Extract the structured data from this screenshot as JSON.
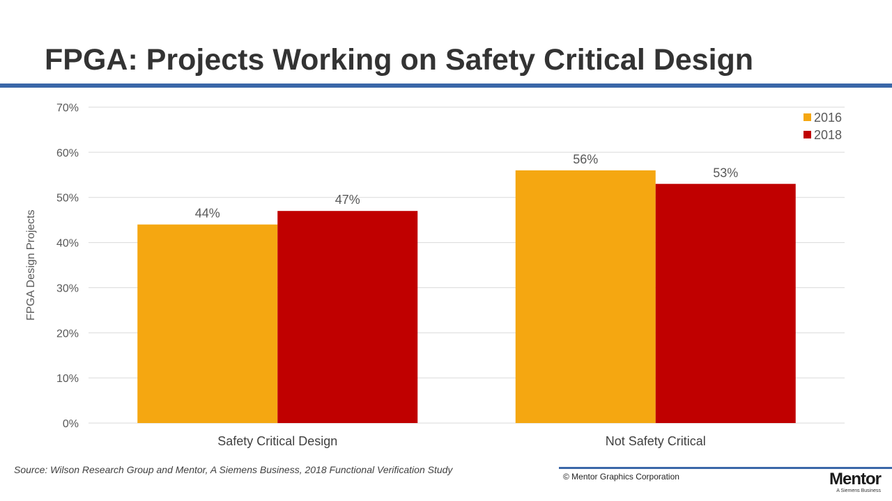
{
  "title": "FPGA: Projects Working on Safety Critical Design",
  "colors": {
    "title_rule": "#3a67a8",
    "footer_rule": "#3a67a8",
    "series_2016": "#f5a711",
    "series_2018": "#c00000",
    "grid": "#d9d9d9",
    "axis_text": "#595959"
  },
  "chart_data": {
    "type": "bar",
    "categories": [
      "Safety Critical Design",
      "Not Safety Critical"
    ],
    "series": [
      {
        "name": "2016",
        "values": [
          44,
          56
        ],
        "labels": [
          "44%",
          "56%"
        ]
      },
      {
        "name": "2018",
        "values": [
          47,
          53
        ],
        "labels": [
          "47%",
          "53%"
        ]
      }
    ],
    "ylabel": "FPGA Design Projects",
    "ylim": [
      0,
      70
    ],
    "yticks": [
      "0%",
      "10%",
      "20%",
      "30%",
      "40%",
      "50%",
      "60%",
      "70%"
    ],
    "grid": true,
    "legend": "top-right"
  },
  "footer": {
    "source": "Source:  Wilson Research Group and Mentor, A Siemens Business, 2018 Functional Verification Study",
    "copyright": "© Mentor Graphics Corporation",
    "logo_word": "Mentor",
    "logo_sub": "A Siemens Business"
  }
}
